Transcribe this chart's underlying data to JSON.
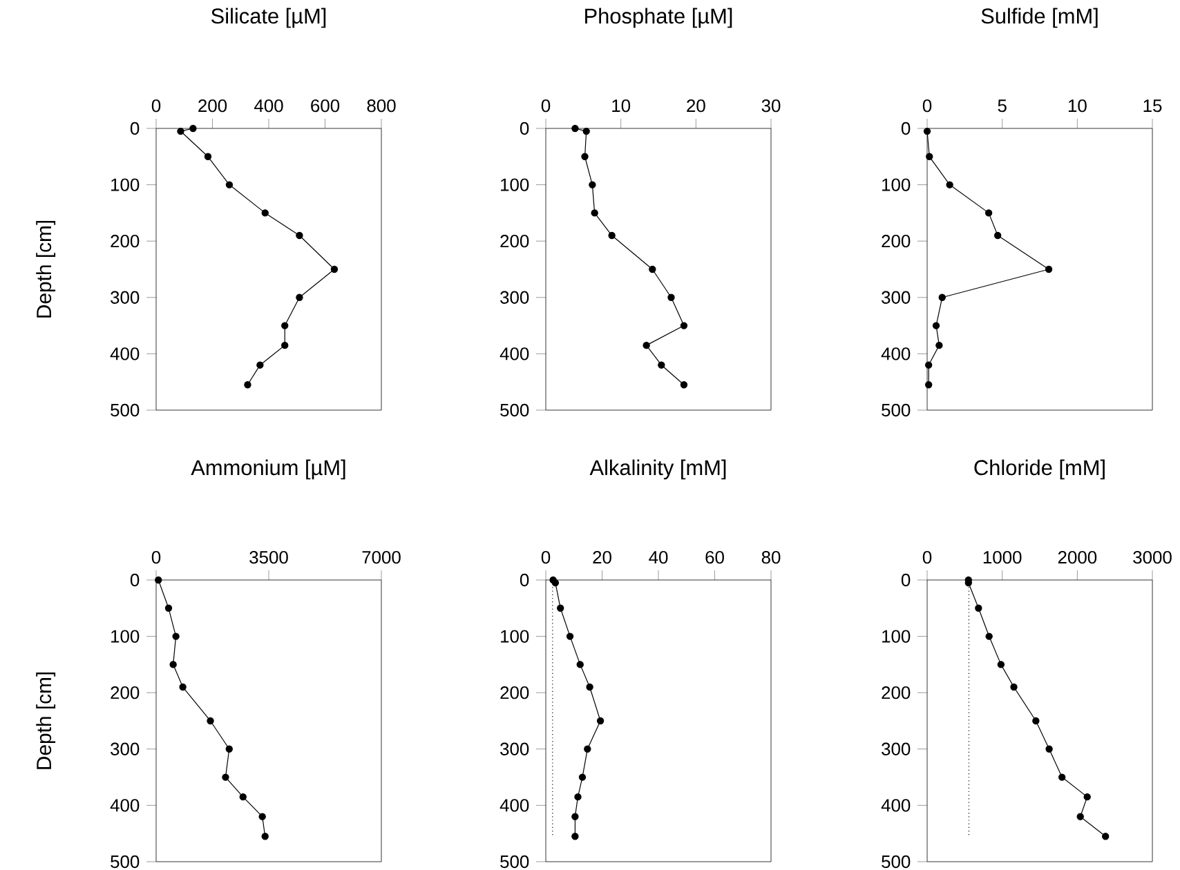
{
  "chart_data": [
    {
      "type": "line",
      "title": "Silicate [µM]",
      "ylabel": "Depth [cm]",
      "xlim": [
        0,
        800
      ],
      "xticks": [
        0,
        200,
        400,
        600,
        800
      ],
      "ylim": [
        500,
        0
      ],
      "yticks": [
        0,
        100,
        200,
        300,
        400,
        500
      ],
      "marker": "circle",
      "line_style": "solid",
      "series": [
        {
          "color": "#000000",
          "x": [
            131,
            87,
            184,
            260,
            387,
            509,
            633,
            509,
            457,
            457,
            369,
            325
          ],
          "values": [
            0,
            5,
            50,
            100,
            150,
            190,
            250,
            300,
            350,
            385,
            420,
            455
          ]
        }
      ]
    },
    {
      "type": "line",
      "title": "Phosphate [µM]",
      "xlim": [
        0,
        30
      ],
      "xticks": [
        0,
        10,
        20,
        30
      ],
      "ylim": [
        500,
        0
      ],
      "yticks": [
        0,
        100,
        200,
        300,
        400,
        500
      ],
      "marker": "circle",
      "line_style": "solid",
      "series": [
        {
          "color": "#000000",
          "x": [
            3.9,
            5.4,
            5.2,
            6.2,
            6.5,
            8.8,
            14.2,
            16.7,
            18.4,
            13.4,
            15.4,
            18.4
          ],
          "values": [
            0,
            5,
            50,
            100,
            150,
            190,
            250,
            300,
            350,
            385,
            420,
            455
          ]
        }
      ]
    },
    {
      "type": "line",
      "title": "Sulfide [mM]",
      "xlim": [
        0,
        15
      ],
      "xticks": [
        0,
        5,
        10,
        15
      ],
      "ylim": [
        500,
        0
      ],
      "yticks": [
        0,
        100,
        200,
        300,
        400,
        500
      ],
      "marker": "circle",
      "line_style": "solid",
      "series": [
        {
          "color": "#000000",
          "x": [
            0,
            0.15,
            1.5,
            4.1,
            4.7,
            8.1,
            1.0,
            0.6,
            0.8,
            0.1,
            0.1
          ],
          "values": [
            5,
            50,
            100,
            150,
            190,
            250,
            300,
            350,
            385,
            420,
            455
          ]
        }
      ]
    },
    {
      "type": "line",
      "title": "Ammonium [µM]",
      "ylabel": "Depth [cm]",
      "xlim": [
        0,
        7000
      ],
      "xticks": [
        0,
        3500,
        7000
      ],
      "ylim": [
        500,
        0
      ],
      "yticks": [
        0,
        100,
        200,
        300,
        400,
        500
      ],
      "marker": "circle",
      "line_style": "solid",
      "series": [
        {
          "color": "#000000",
          "x": [
            70,
            386,
            614,
            529,
            829,
            1686,
            2271,
            2157,
            2700,
            3300,
            3386
          ],
          "values": [
            0,
            50,
            100,
            150,
            190,
            250,
            300,
            350,
            385,
            420,
            455
          ]
        }
      ]
    },
    {
      "type": "line",
      "title": "Alkalinity [mM]",
      "xlim": [
        0,
        80
      ],
      "xticks": [
        0,
        20,
        40,
        60,
        80
      ],
      "ylim": [
        500,
        0
      ],
      "yticks": [
        0,
        100,
        200,
        300,
        400,
        500
      ],
      "marker": "circle",
      "line_style": "solid",
      "series": [
        {
          "color": "#000000",
          "x": [
            2.6,
            3.4,
            5.2,
            8.6,
            12.2,
            15.6,
            19.4,
            14.8,
            13.0,
            11.4,
            10.4,
            10.4
          ],
          "values": [
            0,
            5,
            50,
            100,
            150,
            190,
            250,
            300,
            350,
            385,
            420,
            455
          ]
        },
        {
          "color": "#000000",
          "marker": "none",
          "line_style": "dotted",
          "x": [
            2.4,
            2.4
          ],
          "values": [
            0,
            455
          ]
        }
      ]
    },
    {
      "type": "line",
      "title": "Chloride [mM]",
      "xlim": [
        0,
        3000
      ],
      "xticks": [
        0,
        1000,
        2000,
        3000
      ],
      "ylim": [
        500,
        0
      ],
      "yticks": [
        0,
        100,
        200,
        300,
        400,
        500
      ],
      "marker": "circle",
      "line_style": "solid",
      "series": [
        {
          "color": "#000000",
          "x": [
            550,
            550,
            684,
            825,
            983,
            1155,
            1448,
            1625,
            1796,
            2132,
            2040,
            2376
          ],
          "values": [
            0,
            5,
            50,
            100,
            150,
            190,
            250,
            300,
            350,
            385,
            420,
            455
          ]
        },
        {
          "color": "#000000",
          "marker": "none",
          "line_style": "dotted",
          "x": [
            556,
            556
          ],
          "values": [
            0,
            455
          ]
        }
      ]
    }
  ]
}
